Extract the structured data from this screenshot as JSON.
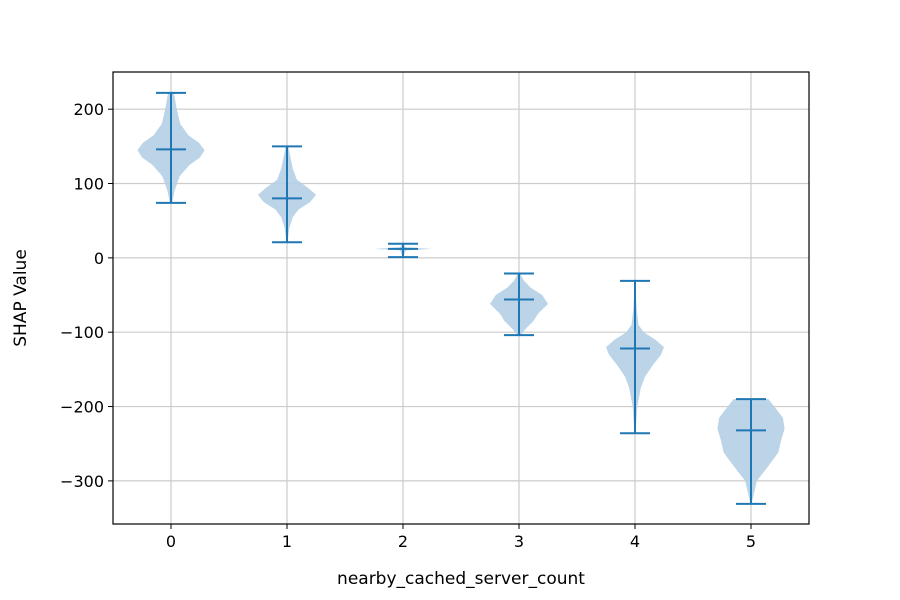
{
  "chart_data": {
    "type": "violin",
    "xlabel": "nearby_cached_server_count",
    "ylabel": "SHAP Value",
    "categories": [
      "0",
      "1",
      "2",
      "3",
      "4",
      "5"
    ],
    "x_positions": [
      0,
      1,
      2,
      3,
      4,
      5
    ],
    "xlim": [
      -0.5,
      5.5
    ],
    "ylim": [
      -358,
      250
    ],
    "yticks": [
      200,
      100,
      0,
      -100,
      -200,
      -300
    ],
    "ytick_labels": [
      "200",
      "100",
      "0",
      "−100",
      "−200",
      "−300"
    ],
    "grid": true,
    "violins": [
      {
        "category": "0",
        "min": 74,
        "max": 222,
        "median": 146,
        "density": [
          [
            74,
            0.02
          ],
          [
            90,
            0.06
          ],
          [
            110,
            0.15
          ],
          [
            125,
            0.32
          ],
          [
            135,
            0.5
          ],
          [
            145,
            0.58
          ],
          [
            155,
            0.48
          ],
          [
            165,
            0.3
          ],
          [
            180,
            0.16
          ],
          [
            200,
            0.1
          ],
          [
            222,
            0.05
          ]
        ]
      },
      {
        "category": "1",
        "min": 21,
        "max": 150,
        "median": 80,
        "density": [
          [
            21,
            0.01
          ],
          [
            40,
            0.04
          ],
          [
            55,
            0.1
          ],
          [
            65,
            0.2
          ],
          [
            75,
            0.4
          ],
          [
            85,
            0.5
          ],
          [
            95,
            0.35
          ],
          [
            105,
            0.17
          ],
          [
            120,
            0.1
          ],
          [
            135,
            0.06
          ],
          [
            150,
            0.02
          ]
        ]
      },
      {
        "category": "2",
        "min": 1,
        "max": 19,
        "median": 12,
        "density": [
          [
            1,
            0.0
          ],
          [
            10,
            0.05
          ],
          [
            12,
            0.5
          ],
          [
            14,
            0.05
          ],
          [
            19,
            0.0
          ]
        ]
      },
      {
        "category": "3",
        "min": -104,
        "max": -21,
        "median": -56,
        "density": [
          [
            -104,
            0.03
          ],
          [
            -95,
            0.12
          ],
          [
            -85,
            0.25
          ],
          [
            -75,
            0.33
          ],
          [
            -62,
            0.5
          ],
          [
            -50,
            0.4
          ],
          [
            -40,
            0.2
          ],
          [
            -30,
            0.08
          ],
          [
            -21,
            0.02
          ]
        ]
      },
      {
        "category": "4",
        "min": -236,
        "max": -31,
        "median": -122,
        "density": [
          [
            -236,
            0.01
          ],
          [
            -200,
            0.04
          ],
          [
            -175,
            0.1
          ],
          [
            -160,
            0.17
          ],
          [
            -145,
            0.3
          ],
          [
            -130,
            0.45
          ],
          [
            -120,
            0.5
          ],
          [
            -110,
            0.35
          ],
          [
            -100,
            0.15
          ],
          [
            -90,
            0.06
          ],
          [
            -70,
            0.03
          ],
          [
            -50,
            0.015
          ],
          [
            -31,
            0.005
          ]
        ]
      },
      {
        "category": "5",
        "min": -331,
        "max": -190,
        "median": -232,
        "density": [
          [
            -331,
            0.01
          ],
          [
            -300,
            0.1
          ],
          [
            -280,
            0.3
          ],
          [
            -262,
            0.47
          ],
          [
            -245,
            0.52
          ],
          [
            -230,
            0.58
          ],
          [
            -215,
            0.55
          ],
          [
            -200,
            0.4
          ],
          [
            -190,
            0.3
          ]
        ]
      }
    ],
    "colors": {
      "line": "#1f77b4",
      "fill": "#b5cfe6",
      "grid": "#cccccc",
      "axis": "#000000"
    }
  }
}
